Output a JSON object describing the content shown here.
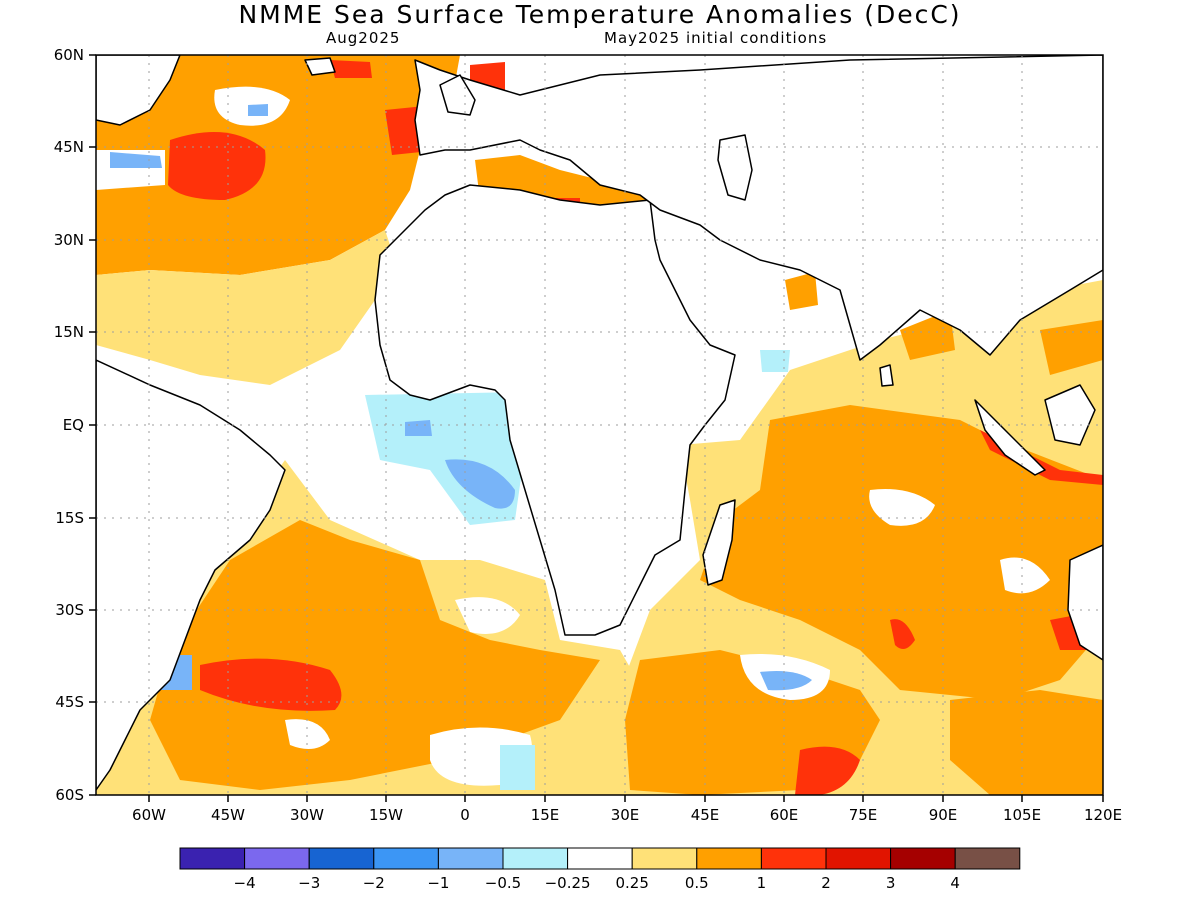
{
  "title": "NMME Sea Surface Temperature Anomalies (DecC)",
  "subtitle_left": "Aug2025",
  "subtitle_right": "May2025 initial conditions",
  "lat_labels": [
    "60N",
    "45N",
    "30N",
    "15N",
    "EQ",
    "15S",
    "30S",
    "45S",
    "60S"
  ],
  "lon_labels": [
    "60W",
    "45W",
    "30W",
    "15W",
    "0",
    "15E",
    "30E",
    "45E",
    "60E",
    "75E",
    "90E",
    "105E",
    "120E"
  ],
  "colorbar": {
    "colors": [
      "#3a22b0",
      "#7b68ee",
      "#1764d2",
      "#3c96f5",
      "#78b4f8",
      "#b4f0fa",
      "#ffffff",
      "#ffe178",
      "#ffa000",
      "#ff320a",
      "#e11400",
      "#a50000",
      "#785046"
    ],
    "labels": [
      "−4",
      "−3",
      "−2",
      "−1",
      "−0.5",
      "−0.25",
      "0.25",
      "0.5",
      "1",
      "2",
      "3",
      "4"
    ]
  }
}
